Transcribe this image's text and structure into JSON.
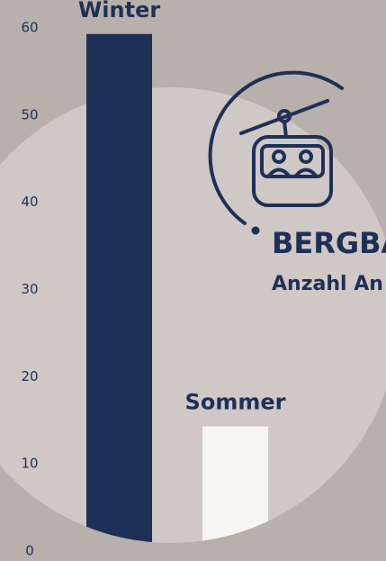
{
  "chart_data": {
    "type": "bar",
    "title": "BERGBA",
    "subtitle": "Anzahl An",
    "categories": [
      "Winter",
      "Sommer"
    ],
    "values": [
      59.3,
      14.3
    ],
    "colors": [
      "#1f3057",
      "#f7f5f3"
    ],
    "ylim": [
      0,
      60
    ],
    "yticks": [
      0,
      10,
      20,
      30,
      40,
      50,
      60
    ],
    "grid": false
  }
}
